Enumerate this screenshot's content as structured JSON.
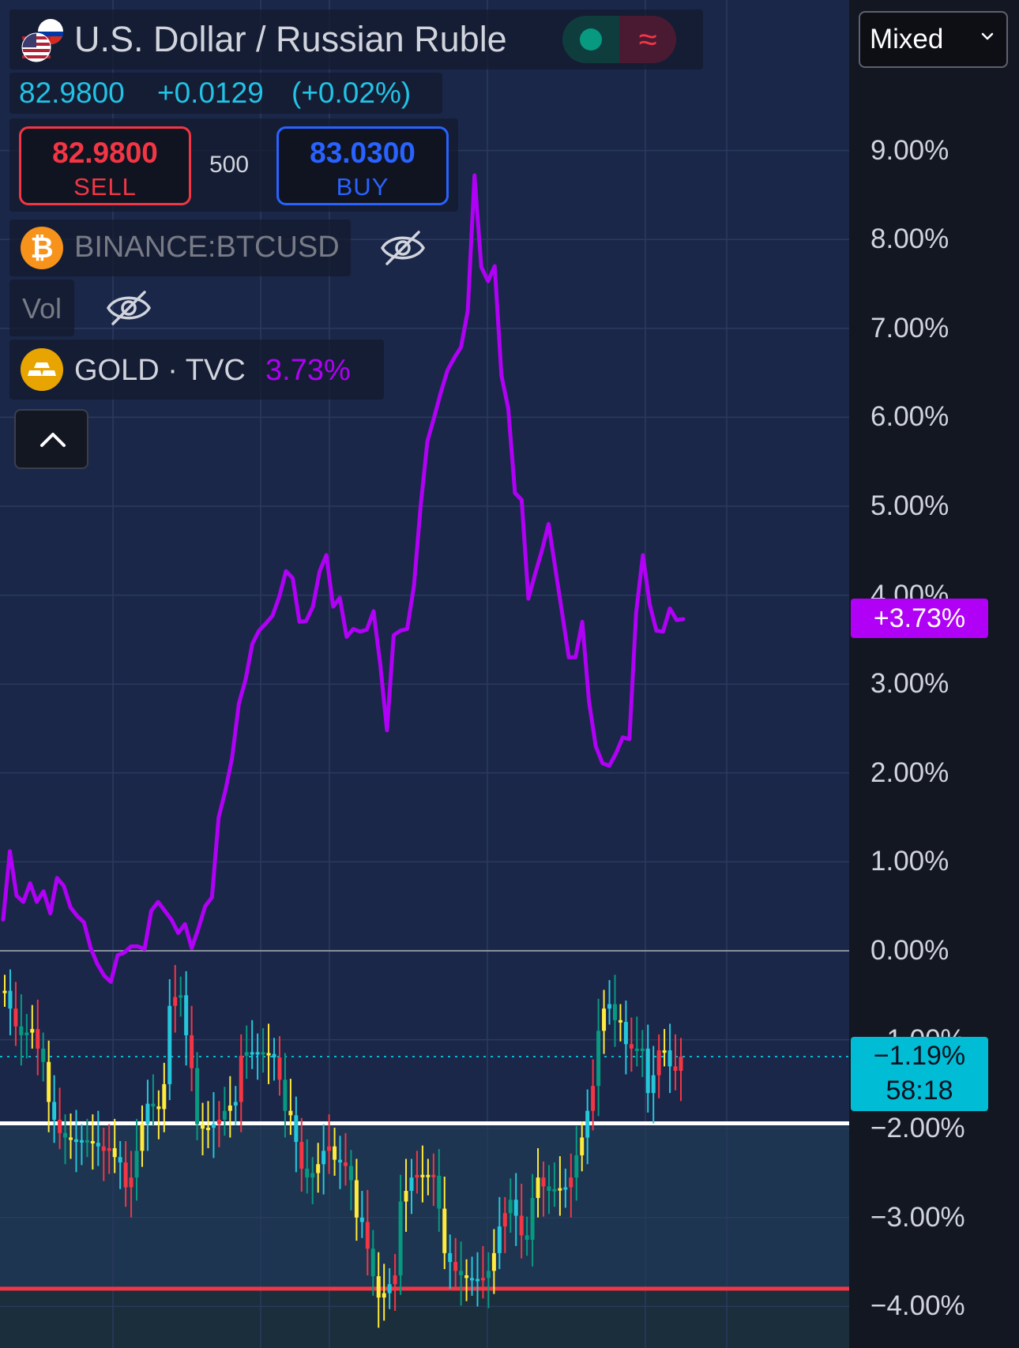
{
  "header": {
    "symbol_title": "U.S. Dollar / Russian Ruble",
    "flag_icon": "us-ru-flag-icon",
    "status_icon": "market-open-dot-icon",
    "delayed_icon": "delayed-data-icon",
    "last_price": "82.9800",
    "change": "+0.0129",
    "change_pct": "(+0.02%)"
  },
  "trade": {
    "sell_price": "82.9800",
    "sell_label": "SELL",
    "spread": "500",
    "buy_price": "83.0300",
    "buy_label": "BUY"
  },
  "legend": {
    "btc_name": "BINANCE:BTCUSD",
    "btc_hidden_icon": "eye-off-icon",
    "vol_label": "Vol",
    "vol_hidden_icon": "eye-off-icon",
    "gold_name": "GOLD · TVC",
    "gold_value": "3.73%",
    "collapse_icon": "chevron-up-icon"
  },
  "axis": {
    "mode_select": "Mixed",
    "ticks": [
      "9.00%",
      "8.00%",
      "7.00%",
      "6.00%",
      "5.00%",
      "4.00%",
      "3.00%",
      "2.00%",
      "1.00%",
      "0.00%",
      "−1.00%",
      "−2.00%",
      "−3.00%",
      "−4.00%"
    ],
    "gold_badge": "+3.73%",
    "rub_badge_value": "−1.19%",
    "rub_badge_countdown": "58:18"
  },
  "colors": {
    "gold_line": "#b000f5",
    "candle_up": "#089981",
    "candle_down": "#f23645",
    "candle_mid": "#ffeb3b",
    "candle_alt": "#26c6da",
    "white_line": "#ffffff",
    "red_line": "#f23645",
    "accent_cyan": "#00bcd4"
  },
  "chart_data": {
    "type": "line",
    "y_unit": "percent change",
    "ylim": [
      -4.4,
      10.2
    ],
    "grid": true,
    "series": [
      {
        "name": "GOLD · TVC",
        "style": "line",
        "values": [
          0.35,
          1.12,
          0.62,
          0.55,
          0.76,
          0.55,
          0.67,
          0.42,
          0.82,
          0.73,
          0.49,
          0.39,
          0.32,
          0.03,
          -0.15,
          -0.28,
          -0.35,
          -0.05,
          -0.02,
          0.05,
          0.05,
          0.02,
          0.45,
          0.55,
          0.45,
          0.35,
          0.2,
          0.3,
          0.03,
          0.25,
          0.5,
          0.6,
          1.5,
          1.8,
          2.17,
          2.78,
          3.05,
          3.45,
          3.6,
          3.68,
          3.77,
          3.98,
          4.27,
          4.19,
          3.7,
          3.71,
          3.87,
          4.27,
          4.45,
          3.87,
          3.97,
          3.53,
          3.62,
          3.59,
          3.61,
          3.82,
          3.22,
          2.48,
          3.55,
          3.6,
          3.62,
          4.1,
          5.0,
          5.73,
          6.0,
          6.28,
          6.53,
          6.67,
          6.79,
          7.2,
          8.72,
          7.69,
          7.53,
          7.7,
          6.47,
          6.1,
          5.15,
          5.07,
          3.96,
          4.24,
          4.5,
          4.8,
          4.3,
          3.8,
          3.3,
          3.3,
          3.7,
          2.8,
          2.3,
          2.11,
          2.08,
          2.22,
          2.4,
          2.38,
          3.8,
          4.45,
          3.9,
          3.6,
          3.59,
          3.85,
          3.72,
          3.73
        ]
      },
      {
        "name": "U.S. Dollar / Russian Ruble",
        "style": "candles",
        "values": [
          -0.45,
          -0.65,
          -0.85,
          -0.95,
          -0.92,
          -0.88,
          -1.1,
          -1.25,
          -1.7,
          -1.9,
          -2.05,
          -2.1,
          -2.12,
          -2.15,
          -2.13,
          -2.14,
          -2.16,
          -2.2,
          -2.25,
          -2.22,
          -2.32,
          -2.38,
          -2.66,
          -2.55,
          -2.25,
          -1.95,
          -1.72,
          -1.75,
          -1.78,
          -1.5,
          -0.62,
          -0.52,
          -0.5,
          -0.95,
          -1.32,
          -1.95,
          -2.0,
          -1.99,
          -1.95,
          -1.9,
          -1.8,
          -1.74,
          -1.7,
          -1.18,
          -1.14,
          -1.15,
          -1.14,
          -1.15,
          -1.16,
          -1.2,
          -1.45,
          -1.8,
          -1.85,
          -2.15,
          -2.45,
          -2.55,
          -2.5,
          -2.4,
          -2.25,
          -2.2,
          -2.35,
          -2.38,
          -2.42,
          -2.58,
          -3.0,
          -3.05,
          -3.35,
          -3.66,
          -3.9,
          -3.85,
          -3.75,
          -3.65,
          -2.82,
          -2.7,
          -2.55,
          -2.52,
          -2.53,
          -2.52,
          -2.53,
          -2.9,
          -3.4,
          -3.5,
          -3.6,
          -3.65,
          -3.68,
          -3.7,
          -3.69,
          -3.68,
          -3.6,
          -3.4,
          -3.1,
          -2.95,
          -2.8,
          -2.98,
          -3.2,
          -3.25,
          -2.78,
          -2.55,
          -2.65,
          -2.7,
          -2.68,
          -2.67,
          -2.66,
          -2.55,
          -2.3,
          -2.1,
          -1.8,
          -1.52,
          -0.9,
          -0.65,
          -0.6,
          -0.78,
          -0.8,
          -1.05,
          -1.1,
          -1.12,
          -1.1,
          -1.6,
          -1.4,
          -1.12,
          -1.12,
          -1.3,
          -1.35,
          -1.19
        ]
      }
    ],
    "reference_lines": [
      {
        "value": 0.0,
        "style": "solid grey"
      },
      {
        "value": -1.19,
        "style": "dotted cyan"
      },
      {
        "value": -1.94,
        "style": "solid white"
      },
      {
        "value": -3.8,
        "style": "solid red"
      }
    ]
  }
}
